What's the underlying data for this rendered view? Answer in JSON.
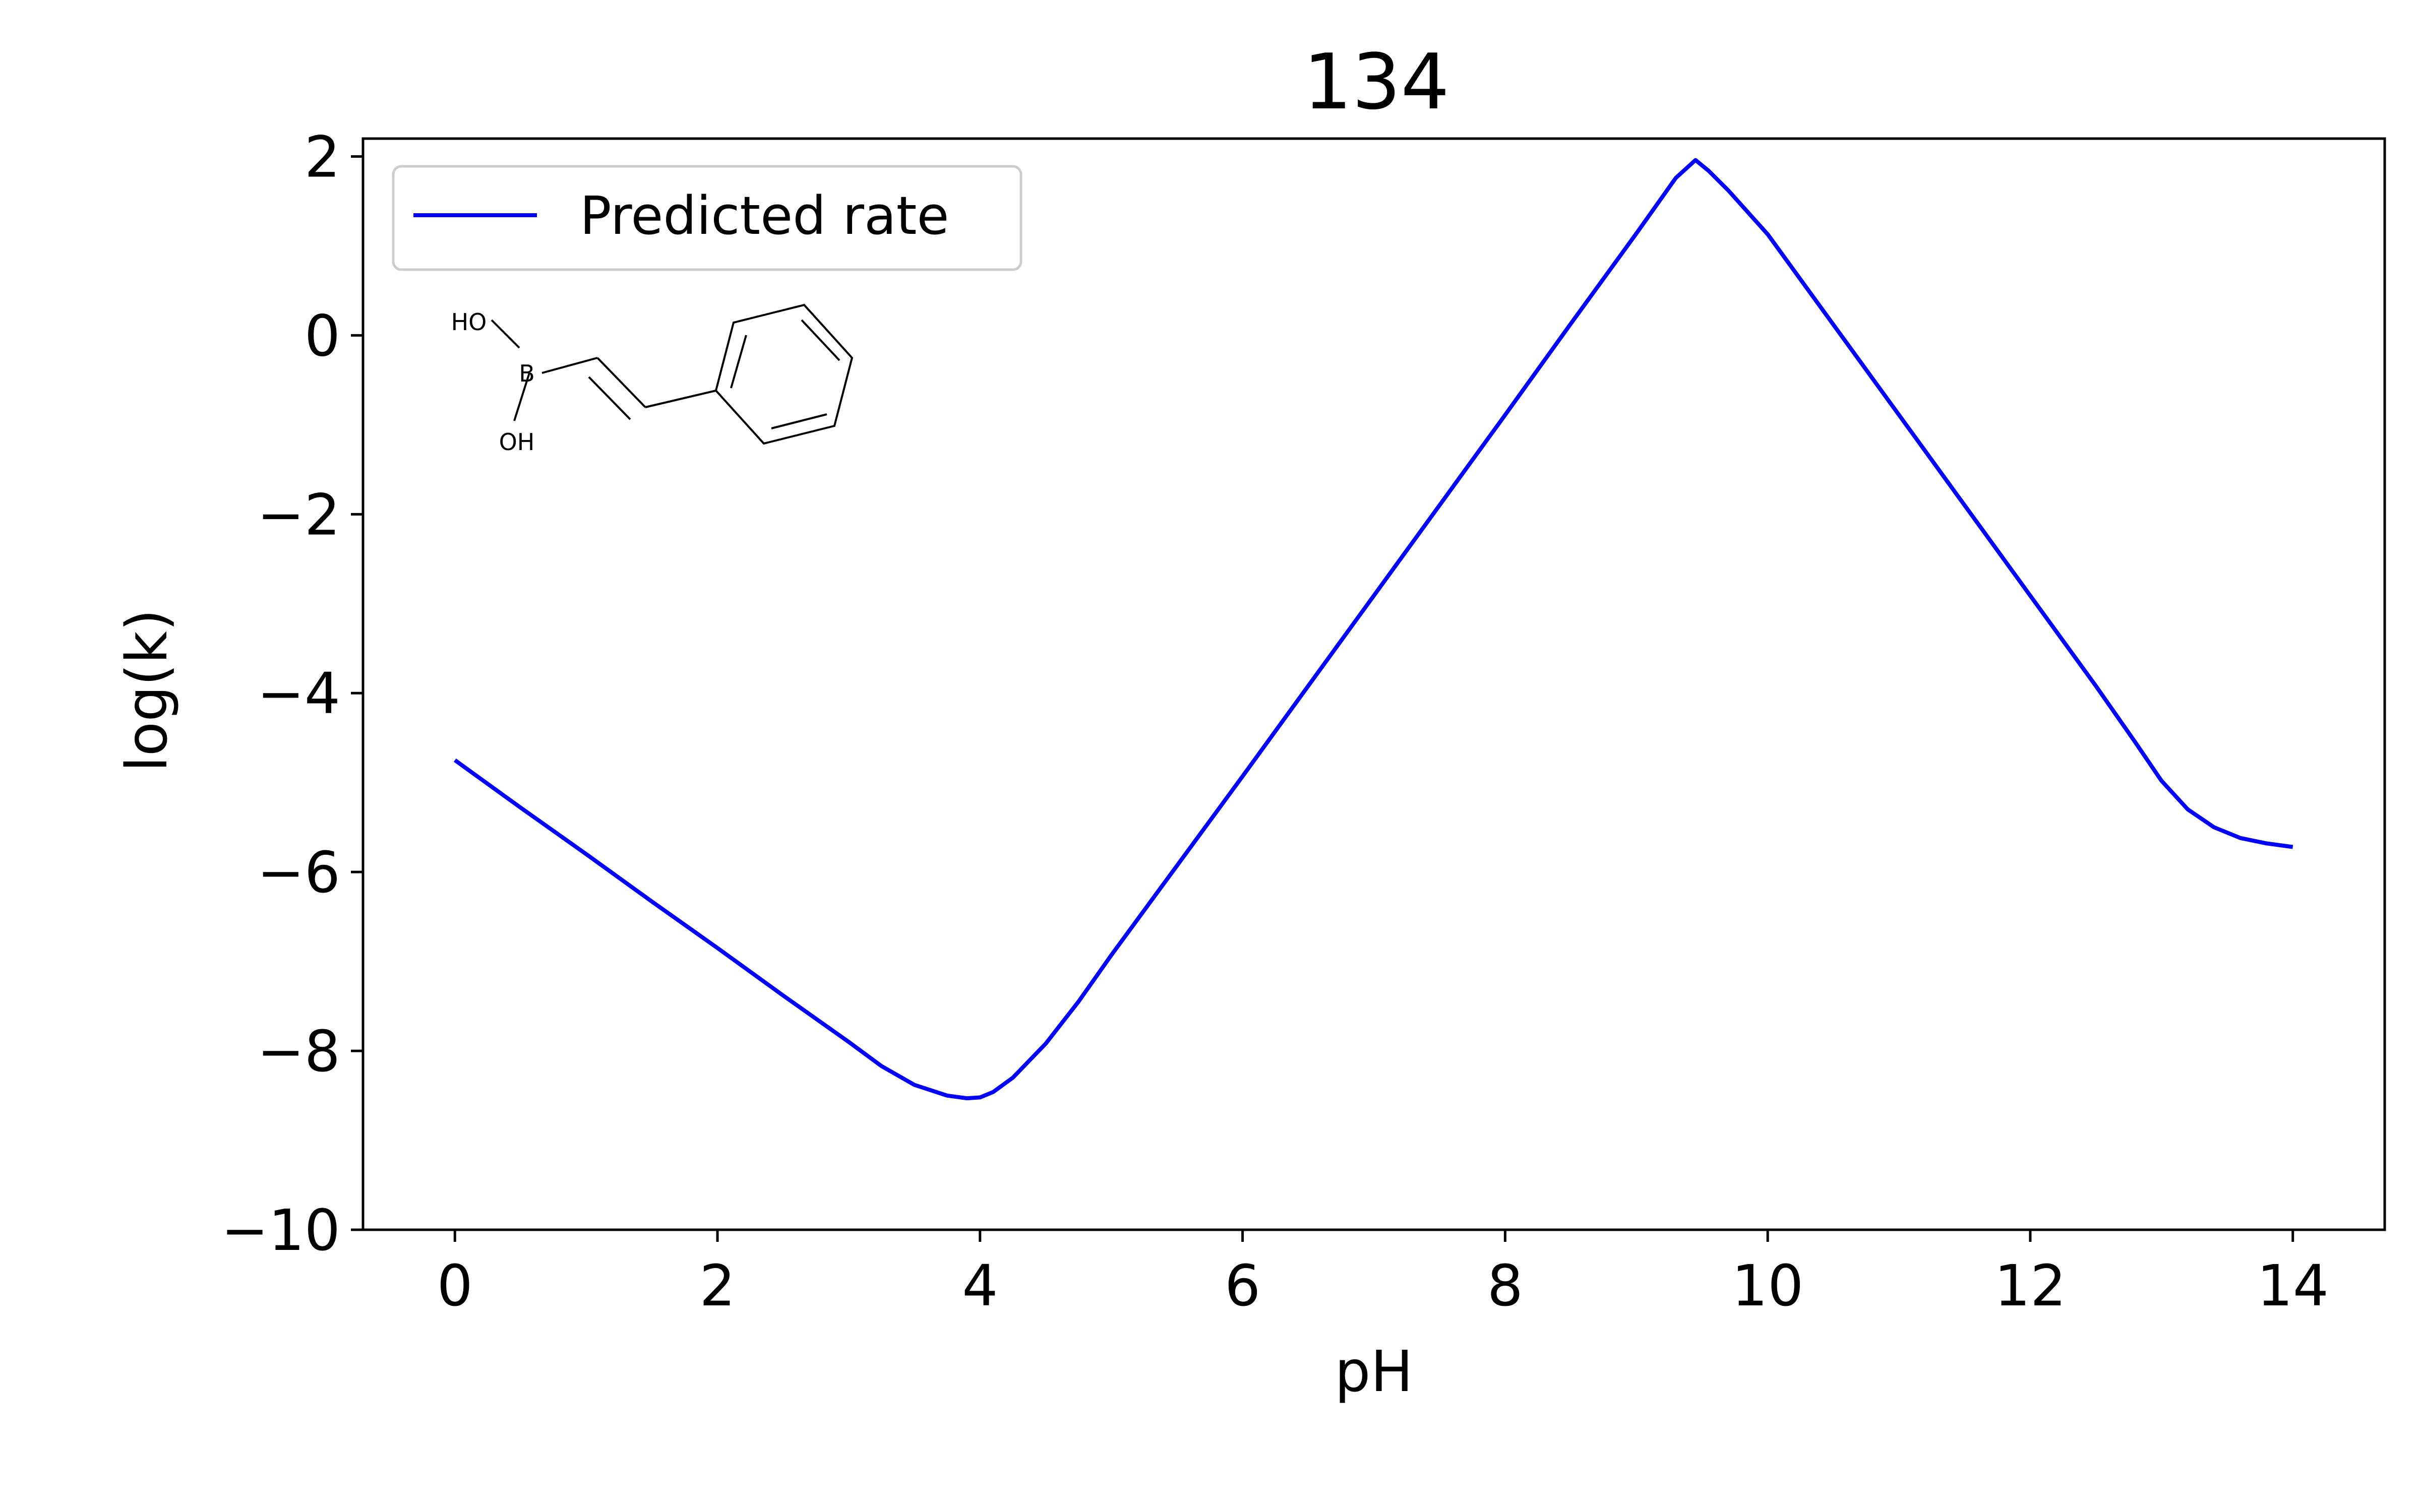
{
  "chart_data": {
    "type": "line",
    "title": "134",
    "xlabel": "pH",
    "ylabel": "log(k)",
    "xlim": [
      -0.7,
      14.7
    ],
    "ylim": [
      -10,
      2.2
    ],
    "xticks": [
      0,
      2,
      4,
      6,
      8,
      10,
      12,
      14
    ],
    "yticks": [
      2,
      0,
      -2,
      -4,
      -6,
      -8,
      -10
    ],
    "xtick_labels": [
      "0",
      "2",
      "4",
      "6",
      "8",
      "10",
      "12",
      "14"
    ],
    "ytick_labels": [
      "2",
      "0",
      "−2",
      "−4",
      "−6",
      "−8",
      "−10"
    ],
    "grid": false,
    "legend": {
      "location": "upper-left",
      "entries": [
        {
          "label": "Predicted rate",
          "color": "#0000ff"
        }
      ]
    },
    "series": [
      {
        "name": "Predicted rate",
        "color": "#0000ff",
        "x": [
          0,
          0.5,
          1,
          1.5,
          2,
          2.5,
          3,
          3.25,
          3.5,
          3.75,
          3.9,
          4.0,
          4.1,
          4.25,
          4.5,
          4.75,
          5,
          5.5,
          6,
          6.5,
          7,
          7.5,
          8,
          8.5,
          9,
          9.3,
          9.45,
          9.55,
          9.7,
          10,
          10.5,
          11,
          11.5,
          12,
          12.5,
          12.8,
          13,
          13.2,
          13.4,
          13.6,
          13.8,
          14
        ],
        "y": [
          -4.75,
          -5.28,
          -5.8,
          -6.33,
          -6.85,
          -7.38,
          -7.9,
          -8.17,
          -8.38,
          -8.5,
          -8.53,
          -8.52,
          -8.46,
          -8.3,
          -7.92,
          -7.45,
          -6.93,
          -5.93,
          -4.93,
          -3.92,
          -2.91,
          -1.9,
          -0.89,
          0.13,
          1.14,
          1.76,
          1.96,
          1.84,
          1.62,
          1.13,
          0.12,
          -0.89,
          -1.9,
          -2.91,
          -3.92,
          -4.55,
          -4.98,
          -5.3,
          -5.5,
          -5.62,
          -5.68,
          -5.72
        ]
      }
    ]
  },
  "structure": {
    "atoms": [
      {
        "label": "HO",
        "color": "#ff0000"
      },
      {
        "label": "B",
        "color": "#000000"
      },
      {
        "label": "OH",
        "color": "#ff0000"
      }
    ]
  }
}
